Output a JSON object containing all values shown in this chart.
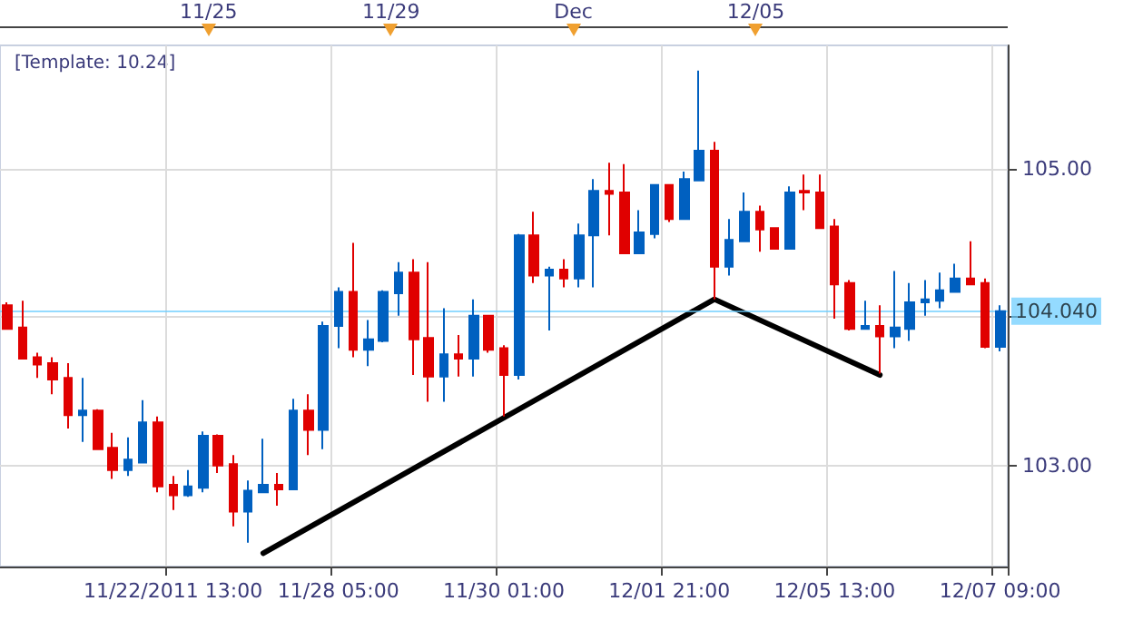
{
  "chart_data": {
    "type": "candlestick",
    "categories": [
      null,
      null,
      null,
      null,
      null,
      null,
      null,
      null,
      null,
      null,
      null,
      "11/22/2011 13:00",
      null,
      null,
      null,
      null,
      null,
      null,
      null,
      null,
      null,
      null,
      "11/28 05:00",
      null,
      null,
      null,
      null,
      null,
      null,
      null,
      null,
      null,
      null,
      "11/30 01:00",
      null,
      null,
      null,
      null,
      null,
      null,
      null,
      null,
      null,
      null,
      "12/01 21:00",
      null,
      null,
      null,
      null,
      null,
      null,
      null,
      null,
      null,
      null,
      "12/05 13:00",
      null,
      null,
      null,
      null,
      null,
      null,
      null,
      null,
      null,
      null,
      "12/07 09:00"
    ],
    "series": [
      {
        "ohlc": [
          [
            104.08,
            104.1,
            103.92,
            103.92
          ],
          [
            103.93,
            104.11,
            103.72,
            103.72
          ],
          [
            103.73,
            103.76,
            103.59,
            103.68
          ],
          [
            103.69,
            103.73,
            103.48,
            103.58
          ],
          [
            103.59,
            103.69,
            103.25,
            103.34
          ],
          [
            103.34,
            103.59,
            103.16,
            103.37
          ],
          [
            103.37,
            103.38,
            103.11,
            103.11
          ],
          [
            103.12,
            103.22,
            102.91,
            102.97
          ],
          [
            102.97,
            103.19,
            102.93,
            103.04
          ],
          [
            103.02,
            103.44,
            103.02,
            103.29
          ],
          [
            103.29,
            103.33,
            102.82,
            102.86
          ],
          [
            102.87,
            102.93,
            102.7,
            102.8
          ],
          [
            102.8,
            102.97,
            102.79,
            102.86
          ],
          [
            102.85,
            103.23,
            102.82,
            103.2
          ],
          [
            103.2,
            103.21,
            102.95,
            103.0
          ],
          [
            103.01,
            103.07,
            102.59,
            102.69
          ],
          [
            102.69,
            102.9,
            102.48,
            102.83
          ],
          [
            102.82,
            103.18,
            102.82,
            102.87
          ],
          [
            102.87,
            102.95,
            102.73,
            102.84
          ],
          [
            102.84,
            103.45,
            102.84,
            103.37
          ],
          [
            103.37,
            103.48,
            103.07,
            103.24
          ],
          [
            103.24,
            103.97,
            103.11,
            103.94
          ],
          [
            103.94,
            104.2,
            103.79,
            104.17
          ],
          [
            104.17,
            104.5,
            103.73,
            103.78
          ],
          [
            103.78,
            103.98,
            103.67,
            103.85
          ],
          [
            103.84,
            104.18,
            103.83,
            104.17
          ],
          [
            104.16,
            104.37,
            104.01,
            104.3
          ],
          [
            104.3,
            104.39,
            103.61,
            103.85
          ],
          [
            103.86,
            104.37,
            103.43,
            103.6
          ],
          [
            103.6,
            104.06,
            103.43,
            103.75
          ],
          [
            103.75,
            103.88,
            103.6,
            103.72
          ],
          [
            103.72,
            104.12,
            103.6,
            104.01
          ],
          [
            104.01,
            104.01,
            103.76,
            103.78
          ],
          [
            103.79,
            103.81,
            103.33,
            103.61
          ],
          [
            103.61,
            104.56,
            103.58,
            104.55
          ],
          [
            104.55,
            104.71,
            104.23,
            104.28
          ],
          [
            104.28,
            104.34,
            103.91,
            104.32
          ],
          [
            104.32,
            104.39,
            104.2,
            104.26
          ],
          [
            104.26,
            104.63,
            104.2,
            104.55
          ],
          [
            104.55,
            104.93,
            104.2,
            104.85
          ],
          [
            104.85,
            105.04,
            104.55,
            104.83
          ],
          [
            104.84,
            105.03,
            104.43,
            104.43
          ],
          [
            104.43,
            104.72,
            104.43,
            104.57
          ],
          [
            104.56,
            104.89,
            104.53,
            104.89
          ],
          [
            104.89,
            104.89,
            104.64,
            104.66
          ],
          [
            104.66,
            104.98,
            104.66,
            104.93
          ],
          [
            104.92,
            105.66,
            104.92,
            105.12
          ],
          [
            105.12,
            105.18,
            104.12,
            104.34
          ],
          [
            104.34,
            104.66,
            104.28,
            104.52
          ],
          [
            104.51,
            104.84,
            104.51,
            104.71
          ],
          [
            104.71,
            104.75,
            104.44,
            104.59
          ],
          [
            104.6,
            104.6,
            104.46,
            104.46
          ],
          [
            104.46,
            104.88,
            104.46,
            104.84
          ],
          [
            104.85,
            104.96,
            104.72,
            104.84
          ],
          [
            104.84,
            104.96,
            104.6,
            104.6
          ],
          [
            104.61,
            104.66,
            103.99,
            104.22
          ],
          [
            104.23,
            104.25,
            103.91,
            103.92
          ],
          [
            103.92,
            104.11,
            103.92,
            103.94
          ],
          [
            103.94,
            104.08,
            103.62,
            103.87
          ],
          [
            103.87,
            104.31,
            103.79,
            103.93
          ],
          [
            103.92,
            104.23,
            103.84,
            104.1
          ],
          [
            104.1,
            104.25,
            104.01,
            104.12
          ],
          [
            104.11,
            104.3,
            104.06,
            104.18
          ],
          [
            104.17,
            104.36,
            104.17,
            104.26
          ],
          [
            104.26,
            104.51,
            104.22,
            104.22
          ],
          [
            104.23,
            104.26,
            103.79,
            103.8
          ],
          [
            103.8,
            104.08,
            103.77,
            104.04
          ]
        ],
        "colors": [
          "#e00000",
          "#e00000",
          "#e00000",
          "#e00000",
          "#e00000",
          "#0060c0",
          "#e00000",
          "#e00000",
          "#0060c0",
          "#0060c0",
          "#e00000",
          "#e00000",
          "#0060c0",
          "#0060c0",
          "#e00000",
          "#e00000",
          "#0060c0",
          "#0060c0",
          "#e00000",
          "#0060c0",
          "#e00000",
          "#0060c0",
          "#0060c0",
          "#e00000",
          "#0060c0",
          "#0060c0",
          "#0060c0",
          "#e00000",
          "#e00000",
          "#0060c0",
          "#e00000",
          "#0060c0",
          "#e00000",
          "#e00000",
          "#0060c0",
          "#e00000",
          "#0060c0",
          "#e00000",
          "#0060c0",
          "#0060c0",
          "#e00000",
          "#e00000",
          "#0060c0",
          "#0060c0",
          "#e00000",
          "#0060c0",
          "#0060c0",
          "#e00000",
          "#0060c0",
          "#0060c0",
          "#e00000",
          "#e00000",
          "#0060c0",
          "#e00000",
          "#e00000",
          "#e00000",
          "#e00000",
          "#0060c0",
          "#e00000",
          "#0060c0",
          "#0060c0",
          "#0060c0",
          "#0060c0",
          "#0060c0",
          "#e00000",
          "#e00000",
          "#0060c0"
        ]
      },
      {
        "type": "line",
        "color": "#000000",
        "values": [
          null,
          null,
          null,
          null,
          null,
          null,
          null,
          null,
          null,
          null,
          null,
          null,
          null,
          null,
          null,
          null,
          null,
          102.41,
          null,
          null,
          null,
          null,
          null,
          null,
          null,
          null,
          null,
          null,
          null,
          null,
          null,
          null,
          null,
          null,
          null,
          null,
          null,
          null,
          null,
          null,
          null,
          null,
          null,
          null,
          null,
          null,
          null,
          104.12,
          null,
          null,
          null,
          null,
          null,
          null,
          null,
          null,
          null,
          null,
          103.61,
          null,
          null,
          null,
          null,
          null,
          null,
          null,
          null
        ]
      }
    ],
    "ylim": [
      102.32,
      105.83
    ],
    "yticks": [
      {
        "value": 103,
        "label": "103.00"
      },
      {
        "value": 104,
        "label": null
      },
      {
        "value": 105,
        "label": "105.00"
      }
    ],
    "ref_lines": [
      {
        "axis": "y",
        "value": 104.04,
        "label": "104.040",
        "color": "#66ccff"
      }
    ],
    "annotations": [
      "[Template: 10.24]",
      "11/25",
      "11/29",
      "Dec",
      "12/05"
    ],
    "grid": true,
    "marker": "none"
  }
}
